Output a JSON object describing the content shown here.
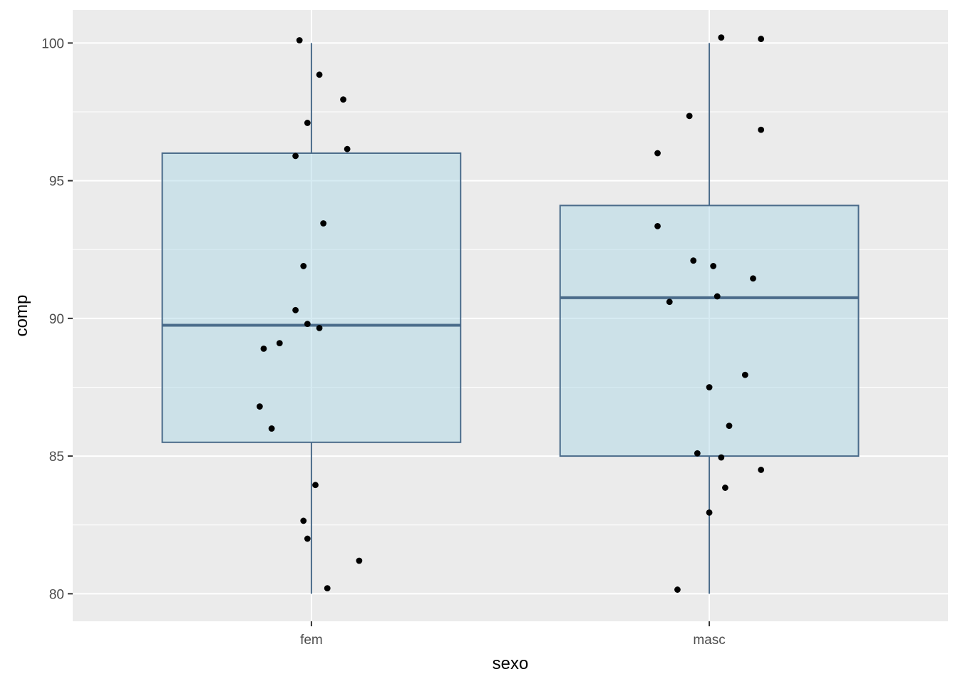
{
  "chart_data": {
    "type": "boxplot",
    "xlabel": "sexo",
    "ylabel": "comp",
    "categories": [
      "fem",
      "masc"
    ],
    "ylim": [
      79,
      101.2
    ],
    "yticks": [
      80,
      85,
      90,
      95,
      100
    ],
    "y_minor_ticks": [
      82.5,
      87.5,
      92.5,
      97.5
    ],
    "grid": true,
    "colors": {
      "panel": "#ebebeb",
      "grid": "#ffffff",
      "box_fill": "#add8e6",
      "box_stroke": "#4a6b8a",
      "points": "#000000"
    },
    "boxes": [
      {
        "category": "fem",
        "min": 80.0,
        "q1": 85.5,
        "median": 89.75,
        "q3": 96.0,
        "max": 100.0
      },
      {
        "category": "masc",
        "min": 80.0,
        "q1": 85.0,
        "median": 90.75,
        "q3": 94.1,
        "max": 100.0
      }
    ],
    "points": [
      {
        "category": "fem",
        "y": 100.1,
        "jitter": -0.03
      },
      {
        "category": "fem",
        "y": 98.85,
        "jitter": 0.02
      },
      {
        "category": "fem",
        "y": 97.95,
        "jitter": 0.08
      },
      {
        "category": "fem",
        "y": 97.1,
        "jitter": -0.01
      },
      {
        "category": "fem",
        "y": 96.15,
        "jitter": 0.09
      },
      {
        "category": "fem",
        "y": 95.9,
        "jitter": -0.04
      },
      {
        "category": "fem",
        "y": 93.45,
        "jitter": 0.03
      },
      {
        "category": "fem",
        "y": 91.9,
        "jitter": -0.02
      },
      {
        "category": "fem",
        "y": 90.3,
        "jitter": -0.04
      },
      {
        "category": "fem",
        "y": 89.8,
        "jitter": -0.01
      },
      {
        "category": "fem",
        "y": 89.65,
        "jitter": 0.02
      },
      {
        "category": "fem",
        "y": 89.1,
        "jitter": -0.08
      },
      {
        "category": "fem",
        "y": 88.9,
        "jitter": -0.12
      },
      {
        "category": "fem",
        "y": 86.8,
        "jitter": -0.13
      },
      {
        "category": "fem",
        "y": 86.0,
        "jitter": -0.1
      },
      {
        "category": "fem",
        "y": 83.95,
        "jitter": 0.01
      },
      {
        "category": "fem",
        "y": 82.65,
        "jitter": -0.02
      },
      {
        "category": "fem",
        "y": 82.0,
        "jitter": -0.01
      },
      {
        "category": "fem",
        "y": 81.2,
        "jitter": 0.12
      },
      {
        "category": "fem",
        "y": 80.2,
        "jitter": 0.04
      },
      {
        "category": "masc",
        "y": 100.2,
        "jitter": 0.03
      },
      {
        "category": "masc",
        "y": 100.15,
        "jitter": 0.13
      },
      {
        "category": "masc",
        "y": 97.35,
        "jitter": -0.05
      },
      {
        "category": "masc",
        "y": 96.85,
        "jitter": 0.13
      },
      {
        "category": "masc",
        "y": 96.0,
        "jitter": -0.13
      },
      {
        "category": "masc",
        "y": 93.35,
        "jitter": -0.13
      },
      {
        "category": "masc",
        "y": 92.1,
        "jitter": -0.04
      },
      {
        "category": "masc",
        "y": 91.9,
        "jitter": 0.01
      },
      {
        "category": "masc",
        "y": 91.45,
        "jitter": 0.11
      },
      {
        "category": "masc",
        "y": 90.8,
        "jitter": 0.02
      },
      {
        "category": "masc",
        "y": 90.6,
        "jitter": -0.1
      },
      {
        "category": "masc",
        "y": 87.95,
        "jitter": 0.09
      },
      {
        "category": "masc",
        "y": 87.5,
        "jitter": 0.0
      },
      {
        "category": "masc",
        "y": 86.1,
        "jitter": 0.05
      },
      {
        "category": "masc",
        "y": 85.1,
        "jitter": -0.03
      },
      {
        "category": "masc",
        "y": 84.95,
        "jitter": 0.03
      },
      {
        "category": "masc",
        "y": 84.5,
        "jitter": 0.13
      },
      {
        "category": "masc",
        "y": 83.85,
        "jitter": 0.04
      },
      {
        "category": "masc",
        "y": 82.95,
        "jitter": 0.0
      },
      {
        "category": "masc",
        "y": 80.15,
        "jitter": -0.08
      }
    ]
  }
}
